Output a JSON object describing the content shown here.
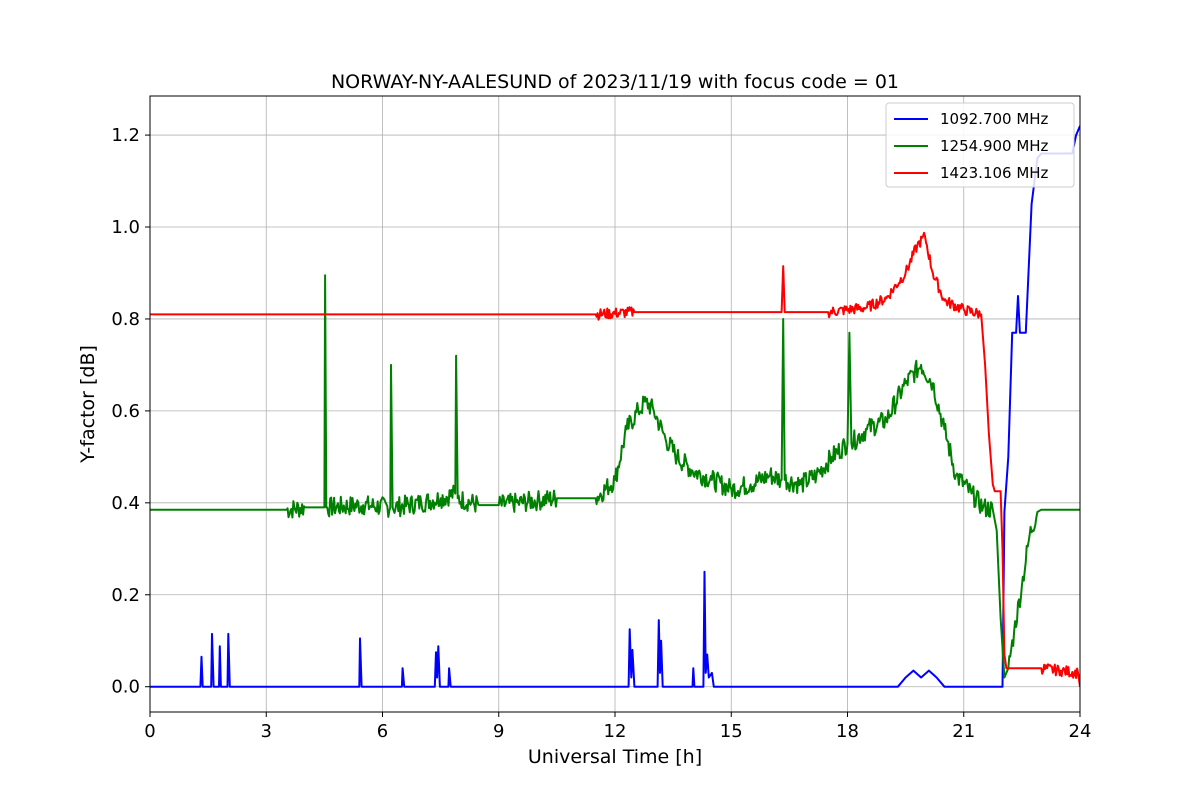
{
  "chart_data": {
    "type": "line",
    "title": "NORWAY-NY-AALESUND of 2023/11/19 with focus code = 01",
    "xlabel": "Universal Time [h]",
    "ylabel": "Y-factor [dB]",
    "xlim": [
      0,
      24
    ],
    "ylim": [
      -0.055,
      1.285
    ],
    "xticks": [
      0,
      3,
      6,
      9,
      12,
      15,
      18,
      21,
      24
    ],
    "xtick_labels": [
      "0",
      "3",
      "6",
      "9",
      "12",
      "15",
      "18",
      "21",
      "24"
    ],
    "yticks": [
      0.0,
      0.2,
      0.4,
      0.6,
      0.8,
      1.0,
      1.2
    ],
    "ytick_labels": [
      "0.0",
      "0.2",
      "0.4",
      "0.6",
      "0.8",
      "1.0",
      "1.2"
    ],
    "grid": true,
    "legend_position": "top-right",
    "series": [
      {
        "name": "1092.700 MHz",
        "color": "#0000ff",
        "points": [
          [
            0,
            0
          ],
          [
            1.3,
            0
          ],
          [
            1.33,
            0.065
          ],
          [
            1.36,
            0
          ],
          [
            1.58,
            0
          ],
          [
            1.6,
            0.115
          ],
          [
            1.64,
            0
          ],
          [
            1.78,
            0
          ],
          [
            1.8,
            0.088
          ],
          [
            1.83,
            0
          ],
          [
            2.0,
            0
          ],
          [
            2.02,
            0.115
          ],
          [
            2.06,
            0
          ],
          [
            5.4,
            0
          ],
          [
            5.42,
            0.105
          ],
          [
            5.46,
            0
          ],
          [
            6.5,
            0
          ],
          [
            6.52,
            0.04
          ],
          [
            6.56,
            0
          ],
          [
            7.35,
            0
          ],
          [
            7.38,
            0.075
          ],
          [
            7.41,
            0.02
          ],
          [
            7.44,
            0.088
          ],
          [
            7.48,
            0
          ],
          [
            7.7,
            0
          ],
          [
            7.72,
            0.04
          ],
          [
            7.76,
            0
          ],
          [
            12.35,
            0
          ],
          [
            12.38,
            0.125
          ],
          [
            12.42,
            0.02
          ],
          [
            12.45,
            0.08
          ],
          [
            12.5,
            0
          ],
          [
            13.1,
            0
          ],
          [
            13.13,
            0.145
          ],
          [
            13.16,
            0.03
          ],
          [
            13.19,
            0.1
          ],
          [
            13.23,
            0
          ],
          [
            14.0,
            0
          ],
          [
            14.02,
            0.04
          ],
          [
            14.05,
            0
          ],
          [
            14.28,
            0
          ],
          [
            14.31,
            0.25
          ],
          [
            14.34,
            0.03
          ],
          [
            14.38,
            0.07
          ],
          [
            14.42,
            0.02
          ],
          [
            14.5,
            0.03
          ],
          [
            14.55,
            0
          ],
          [
            19.3,
            0
          ],
          [
            19.5,
            0.02
          ],
          [
            19.7,
            0.035
          ],
          [
            19.9,
            0.02
          ],
          [
            20.1,
            0.035
          ],
          [
            20.3,
            0.02
          ],
          [
            20.5,
            0
          ],
          [
            22.0,
            0
          ],
          [
            22.05,
            0.38
          ],
          [
            22.15,
            0.5
          ],
          [
            22.25,
            0.77
          ],
          [
            22.35,
            0.77
          ],
          [
            22.4,
            0.85
          ],
          [
            22.45,
            0.77
          ],
          [
            22.6,
            0.77
          ],
          [
            22.75,
            1.05
          ],
          [
            22.9,
            1.15
          ],
          [
            23.0,
            1.16
          ],
          [
            23.5,
            1.16
          ],
          [
            23.8,
            1.16
          ],
          [
            23.9,
            1.2
          ],
          [
            24.0,
            1.22
          ]
        ]
      },
      {
        "name": "1254.900 MHz",
        "color": "#008000",
        "points": [
          [
            0,
            0.385
          ],
          [
            3.5,
            0.385
          ],
          [
            4.0,
            0.39
          ],
          [
            4.5,
            0.39
          ],
          [
            4.52,
            0.895
          ],
          [
            4.55,
            0.39
          ],
          [
            5.5,
            0.395
          ],
          [
            6.2,
            0.39
          ],
          [
            6.22,
            0.7
          ],
          [
            6.26,
            0.39
          ],
          [
            7.0,
            0.4
          ],
          [
            7.5,
            0.41
          ],
          [
            7.88,
            0.42
          ],
          [
            7.9,
            0.72
          ],
          [
            7.94,
            0.41
          ],
          [
            8.5,
            0.395
          ],
          [
            9.0,
            0.395
          ],
          [
            9.5,
            0.4
          ],
          [
            10.0,
            0.405
          ],
          [
            10.5,
            0.41
          ],
          [
            11.0,
            0.41
          ],
          [
            11.5,
            0.41
          ],
          [
            12.0,
            0.45
          ],
          [
            12.3,
            0.56
          ],
          [
            12.6,
            0.6
          ],
          [
            12.8,
            0.62
          ],
          [
            13.0,
            0.6
          ],
          [
            13.3,
            0.54
          ],
          [
            13.6,
            0.5
          ],
          [
            14.0,
            0.47
          ],
          [
            14.5,
            0.45
          ],
          [
            15.0,
            0.43
          ],
          [
            15.5,
            0.44
          ],
          [
            16.0,
            0.46
          ],
          [
            16.3,
            0.45
          ],
          [
            16.34,
            0.8
          ],
          [
            16.38,
            0.45
          ],
          [
            16.8,
            0.44
          ],
          [
            17.2,
            0.46
          ],
          [
            17.6,
            0.5
          ],
          [
            18.0,
            0.53
          ],
          [
            18.05,
            0.77
          ],
          [
            18.1,
            0.53
          ],
          [
            18.5,
            0.56
          ],
          [
            19.0,
            0.58
          ],
          [
            19.5,
            0.66
          ],
          [
            19.9,
            0.7
          ],
          [
            20.2,
            0.66
          ],
          [
            20.5,
            0.56
          ],
          [
            20.8,
            0.46
          ],
          [
            21.2,
            0.42
          ],
          [
            21.5,
            0.39
          ],
          [
            21.75,
            0.385
          ],
          [
            21.85,
            0.34
          ],
          [
            21.95,
            0.15
          ],
          [
            22.05,
            0.02
          ],
          [
            22.15,
            0.04
          ],
          [
            22.3,
            0.12
          ],
          [
            22.5,
            0.22
          ],
          [
            22.7,
            0.33
          ],
          [
            22.9,
            0.38
          ],
          [
            23.0,
            0.385
          ],
          [
            24.0,
            0.385
          ]
        ]
      },
      {
        "name": "1423.106 MHz",
        "color": "#ff0000",
        "points": [
          [
            0,
            0.81
          ],
          [
            11.5,
            0.81
          ],
          [
            12.5,
            0.815
          ],
          [
            13.5,
            0.815
          ],
          [
            14.5,
            0.815
          ],
          [
            15.5,
            0.815
          ],
          [
            16.3,
            0.815
          ],
          [
            16.34,
            0.915
          ],
          [
            16.38,
            0.815
          ],
          [
            17.5,
            0.815
          ],
          [
            18.5,
            0.825
          ],
          [
            19.0,
            0.845
          ],
          [
            19.5,
            0.9
          ],
          [
            19.8,
            0.96
          ],
          [
            20.0,
            0.98
          ],
          [
            20.2,
            0.9
          ],
          [
            20.5,
            0.84
          ],
          [
            21.0,
            0.82
          ],
          [
            21.45,
            0.81
          ],
          [
            21.55,
            0.7
          ],
          [
            21.65,
            0.55
          ],
          [
            21.75,
            0.44
          ],
          [
            21.8,
            0.425
          ],
          [
            21.95,
            0.425
          ],
          [
            22.0,
            0.3
          ],
          [
            22.05,
            0.07
          ],
          [
            22.1,
            0.04
          ],
          [
            23.0,
            0.04
          ],
          [
            23.5,
            0.035
          ],
          [
            23.95,
            0.03
          ],
          [
            24.0,
            0.0
          ]
        ]
      }
    ]
  }
}
